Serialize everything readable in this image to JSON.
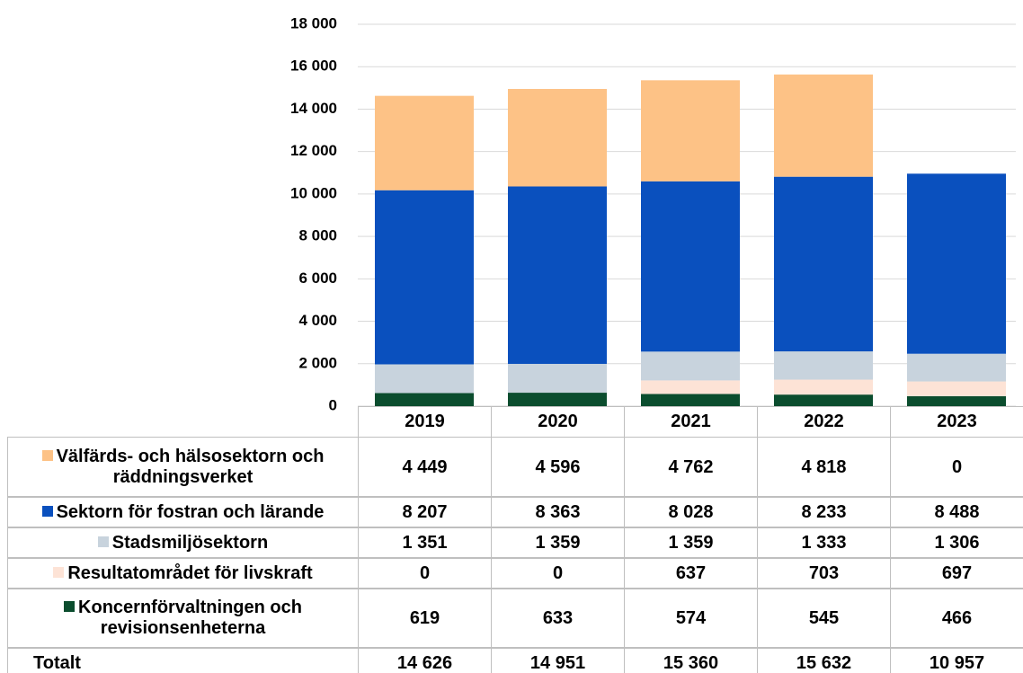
{
  "chart_data": {
    "type": "stacked_bar",
    "categories": [
      "2019",
      "2020",
      "2021",
      "2022",
      "2023"
    ],
    "ylim": [
      0,
      18000
    ],
    "yticks": [
      0,
      {
        "value": 2000,
        "label": "2 000"
      },
      {
        "value": 4000,
        "label": "4 000"
      },
      {
        "value": 6000,
        "label": "6 000"
      },
      {
        "value": 8000,
        "label": "8 000"
      },
      {
        "value": 10000,
        "label": "10 000"
      },
      {
        "value": 12000,
        "label": "12 000"
      },
      {
        "value": 14000,
        "label": "14 000"
      },
      {
        "value": 16000,
        "label": "16 000"
      },
      {
        "value": 18000,
        "label": "18 000"
      }
    ],
    "grid": true,
    "series": [
      {
        "name": "Välfärds- och hälsosektorn och räddningsverket",
        "color": "#fdc286",
        "values": [
          4449,
          4596,
          4762,
          4818,
          0
        ],
        "value_labels": [
          "4 449",
          "4 596",
          "4 762",
          "4 818",
          "0"
        ]
      },
      {
        "name": "Sektorn för fostran och lärande",
        "color": "#0a50be",
        "values": [
          8207,
          8363,
          8028,
          8233,
          8488
        ],
        "value_labels": [
          "8 207",
          "8 363",
          "8 028",
          "8 233",
          "8 488"
        ]
      },
      {
        "name": "Stadsmiljösektorn",
        "color": "#c8d3dd",
        "values": [
          1351,
          1359,
          1359,
          1333,
          1306
        ],
        "value_labels": [
          "1 351",
          "1 359",
          "1 359",
          "1 333",
          "1 306"
        ]
      },
      {
        "name": "Resultatområdet för livskraft",
        "color": "#fde3d6",
        "values": [
          0,
          0,
          637,
          703,
          697
        ],
        "value_labels": [
          "0",
          "0",
          "637",
          "703",
          "697"
        ]
      },
      {
        "name": "Koncernförvaltningen och revisionsenheterna",
        "color": "#0b4d2e",
        "values": [
          619,
          633,
          574,
          545,
          466
        ],
        "value_labels": [
          "619",
          "633",
          "574",
          "545",
          "466"
        ]
      }
    ],
    "totals": {
      "name": "Totalt",
      "values": [
        14626,
        14951,
        15360,
        15632,
        10957
      ],
      "value_labels": [
        "14 626",
        "14 951",
        "15 360",
        "15 632",
        "10 957"
      ]
    }
  }
}
